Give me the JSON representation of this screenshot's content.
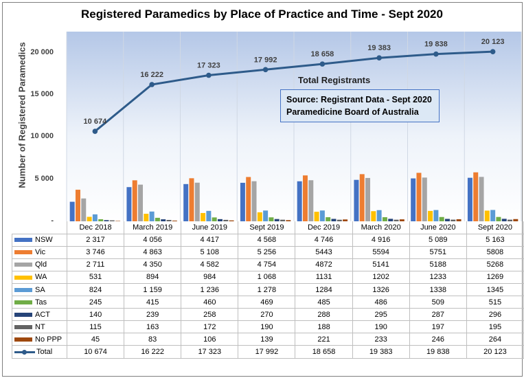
{
  "chart_data": {
    "type": "bar+line",
    "title": "Registered Paramedics by Place of Practice and Time - Sept 2020",
    "ylabel": "Number of Registered Paramedics",
    "xlabel": "",
    "ylim": [
      0,
      22500
    ],
    "yticks": [
      0,
      5000,
      10000,
      15000,
      20000
    ],
    "ytick_labels": [
      "-",
      "5 000",
      "10 000",
      "15 000",
      "20 000"
    ],
    "categories": [
      "Dec 2018",
      "March 2019",
      "June 2019",
      "Sept 2019",
      "Dec 2019",
      "March 2020",
      "June 2020",
      "Sept 2020"
    ],
    "series": [
      {
        "name": "NSW",
        "kind": "bar",
        "color": "#4472c4",
        "values": [
          2317,
          4056,
          4417,
          4568,
          4746,
          4916,
          5089,
          5163
        ],
        "labels": [
          "2 317",
          "4 056",
          "4 417",
          "4 568",
          "4 746",
          "4 916",
          "5 089",
          "5 163"
        ]
      },
      {
        "name": "Vic",
        "kind": "bar",
        "color": "#ed7d31",
        "values": [
          3746,
          4863,
          5108,
          5256,
          5443,
          5594,
          5751,
          5808
        ],
        "labels": [
          "3 746",
          "4 863",
          "5 108",
          "5 256",
          "5443",
          "5594",
          "5751",
          "5808"
        ]
      },
      {
        "name": "Qld",
        "kind": "bar",
        "color": "#a5a5a5",
        "values": [
          2711,
          4350,
          4582,
          4754,
          4872,
          5141,
          5188,
          5268
        ],
        "labels": [
          "2 711",
          "4 350",
          "4 582",
          "4 754",
          "4872",
          "5141",
          "5188",
          "5268"
        ]
      },
      {
        "name": "WA",
        "kind": "bar",
        "color": "#ffc000",
        "values": [
          531,
          894,
          984,
          1068,
          1131,
          1202,
          1233,
          1269
        ],
        "labels": [
          "531",
          "894",
          "984",
          "1 068",
          "1131",
          "1202",
          "1233",
          "1269"
        ]
      },
      {
        "name": "SA",
        "kind": "bar",
        "color": "#5b9bd5",
        "values": [
          824,
          1159,
          1236,
          1278,
          1284,
          1326,
          1338,
          1345
        ],
        "labels": [
          "824",
          "1 159",
          "1 236",
          "1 278",
          "1284",
          "1326",
          "1338",
          "1345"
        ]
      },
      {
        "name": "Tas",
        "kind": "bar",
        "color": "#70ad47",
        "values": [
          245,
          415,
          460,
          469,
          485,
          486,
          509,
          515
        ],
        "labels": [
          "245",
          "415",
          "460",
          "469",
          "485",
          "486",
          "509",
          "515"
        ]
      },
      {
        "name": "ACT",
        "kind": "bar",
        "color": "#264478",
        "values": [
          140,
          239,
          258,
          270,
          288,
          295,
          287,
          296
        ],
        "labels": [
          "140",
          "239",
          "258",
          "270",
          "288",
          "295",
          "287",
          "296"
        ]
      },
      {
        "name": "NT",
        "kind": "bar",
        "color": "#636363",
        "values": [
          115,
          163,
          172,
          190,
          188,
          190,
          197,
          195
        ],
        "labels": [
          "115",
          "163",
          "172",
          "190",
          "188",
          "190",
          "197",
          "195"
        ]
      },
      {
        "name": "No PPP",
        "kind": "bar",
        "color": "#9e480e",
        "values": [
          45,
          83,
          106,
          139,
          221,
          233,
          246,
          264
        ],
        "labels": [
          "45",
          "83",
          "106",
          "139",
          "221",
          "233",
          "246",
          "264"
        ]
      },
      {
        "name": "Total",
        "kind": "line",
        "color": "#2e5b8a",
        "values": [
          10674,
          16222,
          17323,
          17992,
          18658,
          19383,
          19838,
          20123
        ],
        "labels": [
          "10 674",
          "16 222",
          "17 323",
          "17 992",
          "18 658",
          "19 383",
          "19 838",
          "20 123"
        ]
      }
    ],
    "annotations": {
      "total_label": "Total Registrants",
      "source_line1": "Source: Registrant Data - Sept 2020",
      "source_line2": "Paramedicine Board of Australia"
    },
    "grid": true,
    "legend": "data-table"
  }
}
